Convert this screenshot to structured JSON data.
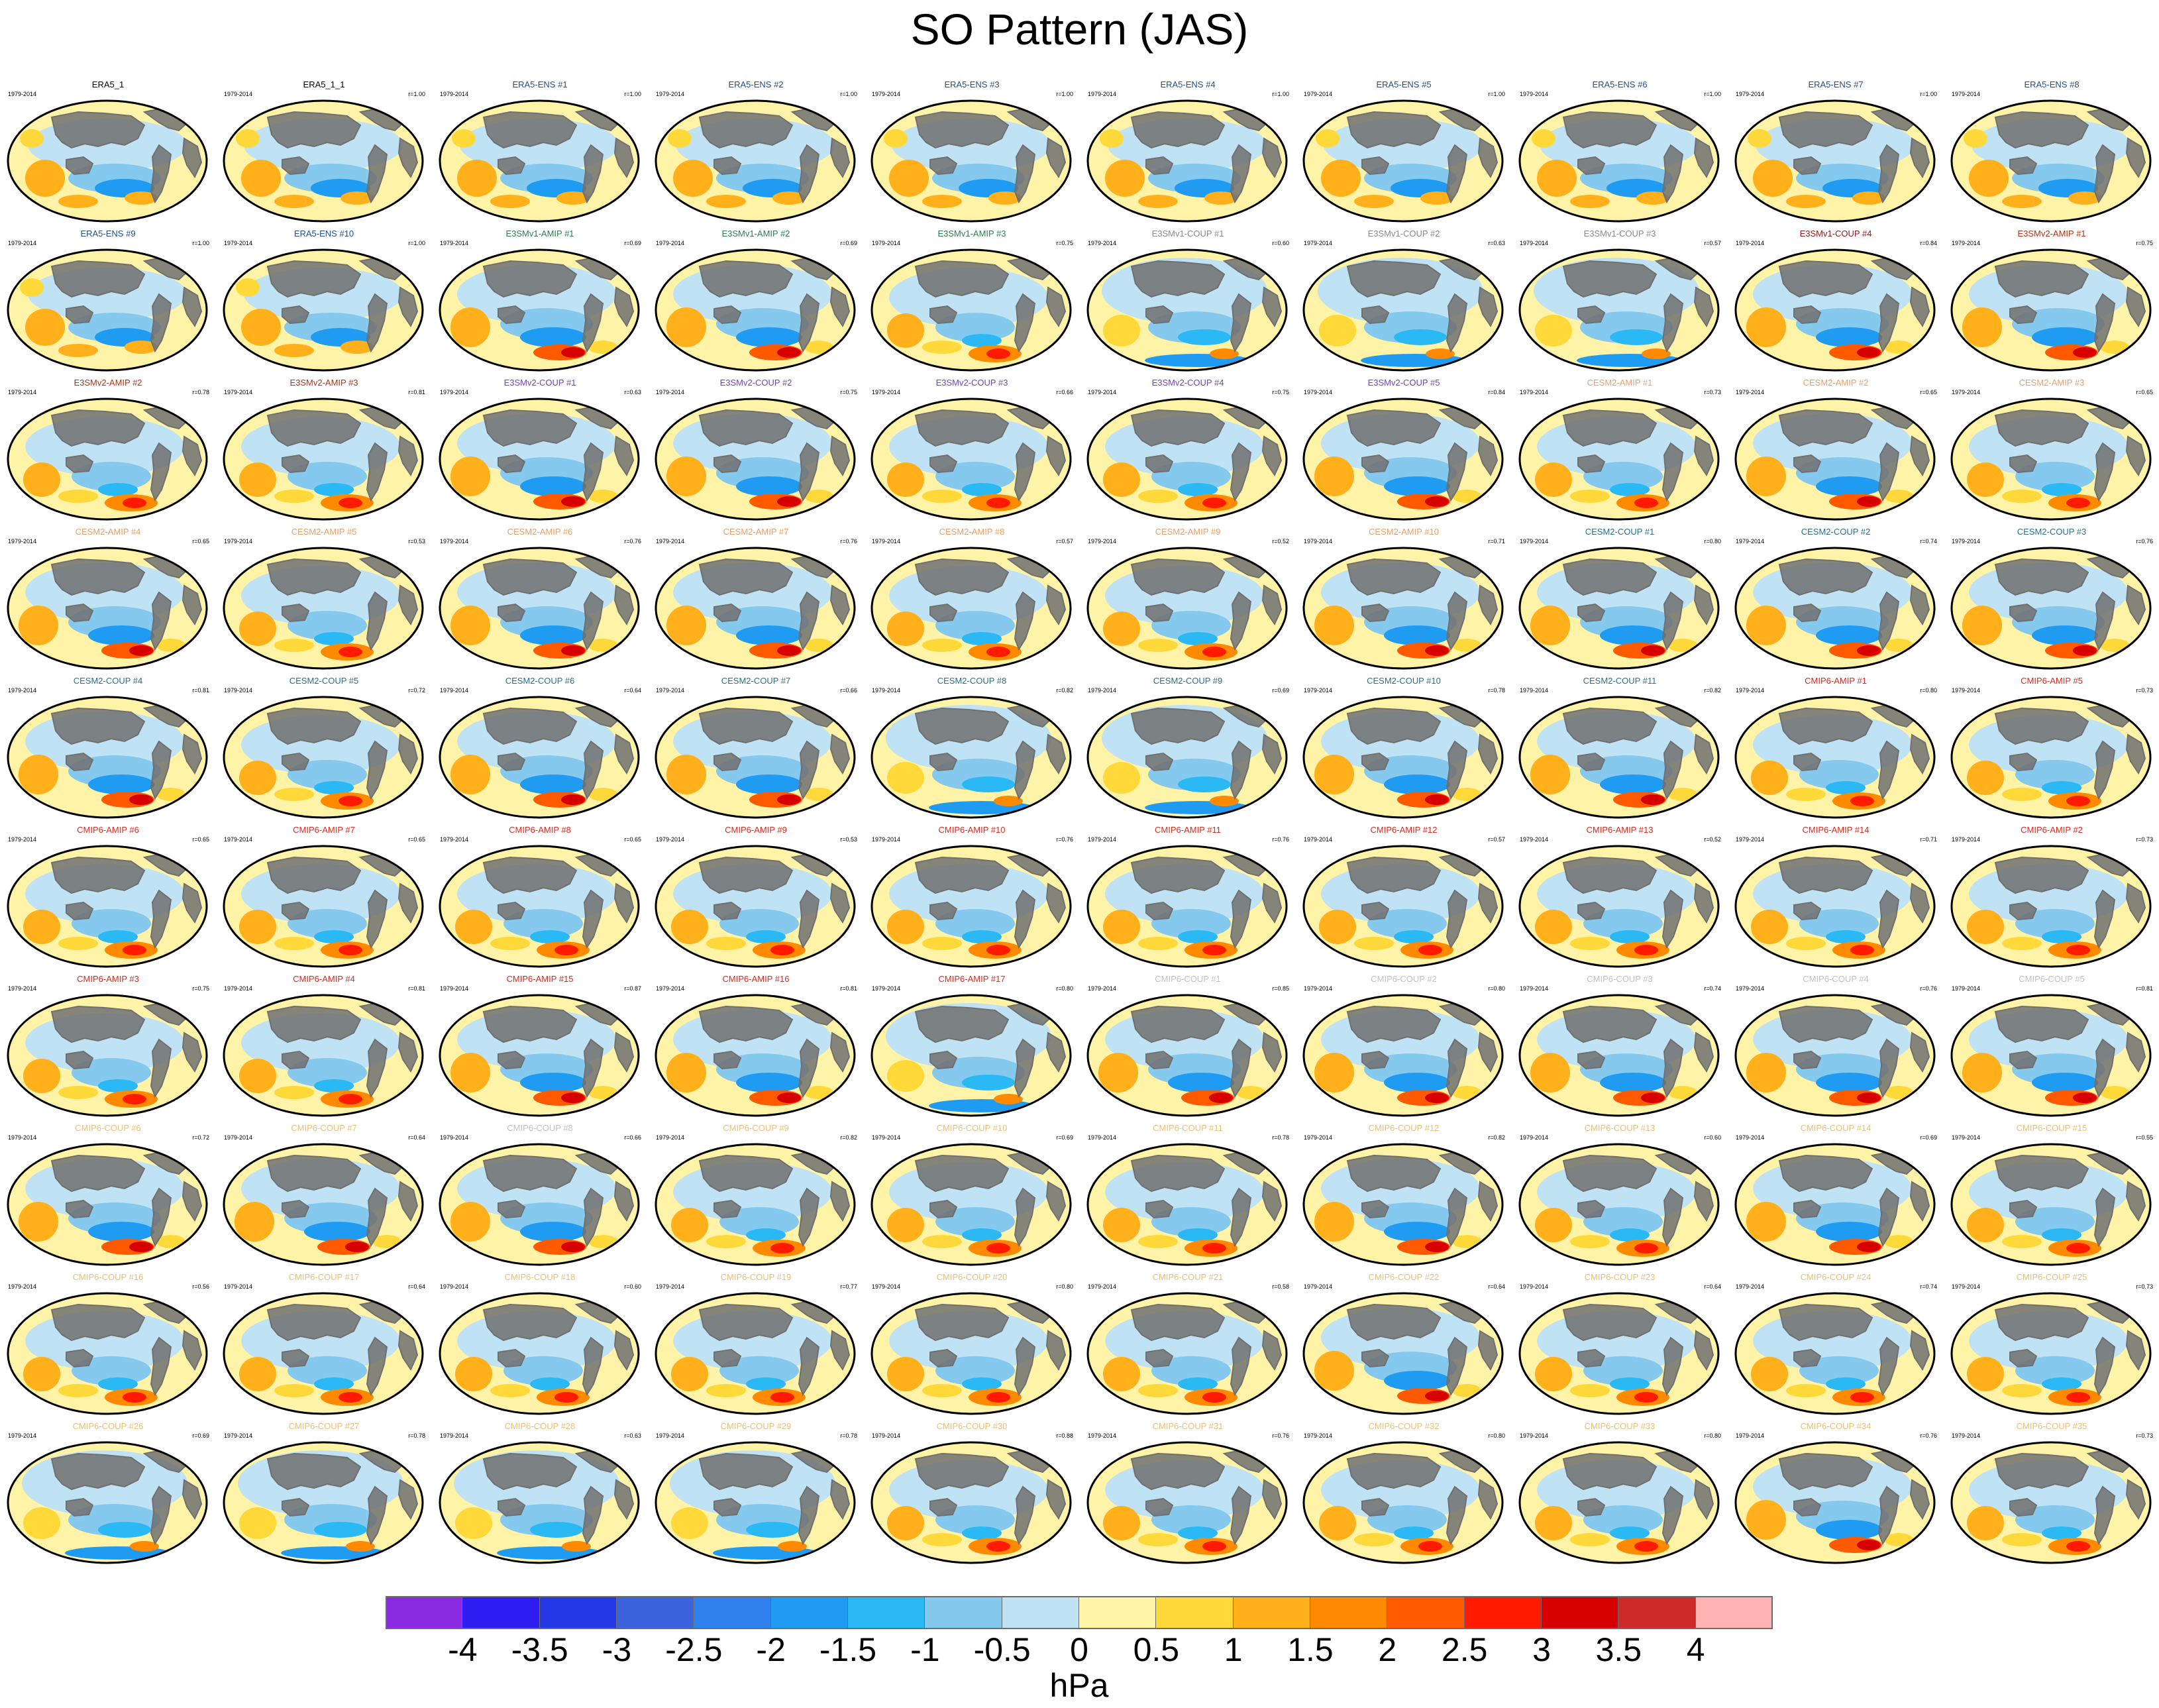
{
  "title": "SO Pattern (JAS)",
  "colorbar": {
    "unit": "hPa",
    "labels": [
      "-4",
      "-3.5",
      "-3",
      "-2.5",
      "-2",
      "-1.5",
      "-1",
      "-0.5",
      "0",
      "0.5",
      "1",
      "1.5",
      "2",
      "2.5",
      "3",
      "3.5",
      "4"
    ],
    "colors": [
      "#8a2be2",
      "#2d1df0",
      "#2438e6",
      "#3a63dd",
      "#2f80ed",
      "#1f9cf2",
      "#2ab9f5",
      "#86c9ee",
      "#bfe2f4",
      "#fff3a8",
      "#ffd93a",
      "#ffb01a",
      "#ff8a00",
      "#ff5a00",
      "#ff1a00",
      "#d60000",
      "#cf2a2a",
      "#ffb3b3"
    ]
  },
  "map_style": {
    "ocean_positive": "#fff3a8",
    "land_fill": "#707070",
    "coast_color": "#707070"
  },
  "period_label": "1979-2014",
  "panels": [
    {
      "title": "ERA5_1",
      "r": "",
      "color": "#000000",
      "pattern": 0
    },
    {
      "title": "ERA5_1_1",
      "r": "r=1.00",
      "color": "#000000",
      "pattern": 0
    },
    {
      "title": "ERA5-ENS   #1",
      "r": "r=1.00",
      "color": "#1f4f8f",
      "pattern": 0
    },
    {
      "title": "ERA5-ENS   #2",
      "r": "r=1.00",
      "color": "#1f4f8f",
      "pattern": 0
    },
    {
      "title": "ERA5-ENS   #3",
      "r": "r=1.00",
      "color": "#1f4f8f",
      "pattern": 0
    },
    {
      "title": "ERA5-ENS   #4",
      "r": "r=1.00",
      "color": "#1f4f8f",
      "pattern": 0
    },
    {
      "title": "ERA5-ENS   #5",
      "r": "r=1.00",
      "color": "#1f4f8f",
      "pattern": 0
    },
    {
      "title": "ERA5-ENS   #6",
      "r": "r=1.00",
      "color": "#1f4f8f",
      "pattern": 0
    },
    {
      "title": "ERA5-ENS   #7",
      "r": "r=1.00",
      "color": "#1f4f8f",
      "pattern": 0
    },
    {
      "title": "ERA5-ENS   #8",
      "r": "",
      "color": "#1f4f8f",
      "pattern": 0
    },
    {
      "title": "ERA5-ENS   #9",
      "r": "r=1.00",
      "color": "#1f4f8f",
      "pattern": 0
    },
    {
      "title": "ERA5-ENS   #10",
      "r": "r=1.00",
      "color": "#1f4f8f",
      "pattern": 0
    },
    {
      "title": "E3SMv1-AMIP #1",
      "r": "r=0.69",
      "color": "#2e7d4f",
      "pattern": 1
    },
    {
      "title": "E3SMv1-AMIP #2",
      "r": "r=0.69",
      "color": "#2e7d4f",
      "pattern": 1
    },
    {
      "title": "E3SMv1-AMIP #3",
      "r": "r=0.75",
      "color": "#2e7d4f",
      "pattern": 2
    },
    {
      "title": "E3SMv1-COUP #1",
      "r": "r=0.60",
      "color": "#8a8a8a",
      "pattern": 3
    },
    {
      "title": "E3SMv1-COUP #2",
      "r": "r=0.63",
      "color": "#8a8a8a",
      "pattern": 3
    },
    {
      "title": "E3SMv1-COUP #3",
      "r": "r=0.57",
      "color": "#8a8a8a",
      "pattern": 3
    },
    {
      "title": "E3SMv1-COUP #4",
      "r": "r=0.84",
      "color": "#8b1a1a",
      "pattern": 1
    },
    {
      "title": "E3SMv2-AMIP #1",
      "r": "r=0.75",
      "color": "#b5320f",
      "pattern": 1
    },
    {
      "title": "E3SMv2-AMIP #2",
      "r": "r=0.78",
      "color": "#b5320f",
      "pattern": 2
    },
    {
      "title": "E3SMv2-AMIP #3",
      "r": "r=0.81",
      "color": "#b5320f",
      "pattern": 2
    },
    {
      "title": "E3SMv2-COUP #1",
      "r": "r=0.63",
      "color": "#7a3fb5",
      "pattern": 1
    },
    {
      "title": "E3SMv2-COUP #2",
      "r": "r=0.75",
      "color": "#7a3fb5",
      "pattern": 1
    },
    {
      "title": "E3SMv2-COUP #3",
      "r": "r=0.66",
      "color": "#7a3fb5",
      "pattern": 2
    },
    {
      "title": "E3SMv2-COUP #4",
      "r": "r=0.75",
      "color": "#7a3fb5",
      "pattern": 2
    },
    {
      "title": "E3SMv2-COUP #5",
      "r": "r=0.84",
      "color": "#7a3fb5",
      "pattern": 1
    },
    {
      "title": "CESM2-AMIP #1",
      "r": "r=0.73",
      "color": "#e8a06a",
      "pattern": 2
    },
    {
      "title": "CESM2-AMIP #2",
      "r": "r=0.65",
      "color": "#e8a06a",
      "pattern": 1
    },
    {
      "title": "CESM2-AMIP #3",
      "r": "r=0.65",
      "color": "#e8a06a",
      "pattern": 2
    },
    {
      "title": "CESM2-AMIP #4",
      "r": "r=0.65",
      "color": "#e8a06a",
      "pattern": 1
    },
    {
      "title": "CESM2-AMIP #5",
      "r": "r=0.53",
      "color": "#e8a06a",
      "pattern": 2
    },
    {
      "title": "CESM2-AMIP #6",
      "r": "r=0.76",
      "color": "#e8a06a",
      "pattern": 1
    },
    {
      "title": "CESM2-AMIP #7",
      "r": "r=0.76",
      "color": "#e8a06a",
      "pattern": 1
    },
    {
      "title": "CESM2-AMIP #8",
      "r": "r=0.57",
      "color": "#e8a06a",
      "pattern": 2
    },
    {
      "title": "CESM2-AMIP #9",
      "r": "r=0.52",
      "color": "#e8a06a",
      "pattern": 2
    },
    {
      "title": "CESM2-AMIP #10",
      "r": "r=0.71",
      "color": "#e8a06a",
      "pattern": 1
    },
    {
      "title": "CESM2-COUP #1",
      "r": "r=0.80",
      "color": "#2b6f8f",
      "pattern": 1
    },
    {
      "title": "CESM2-COUP #2",
      "r": "r=0.74",
      "color": "#2b6f8f",
      "pattern": 1
    },
    {
      "title": "CESM2-COUP #3",
      "r": "r=0.76",
      "color": "#2b6f8f",
      "pattern": 1
    },
    {
      "title": "CESM2-COUP #4",
      "r": "r=0.81",
      "color": "#2b6f8f",
      "pattern": 1
    },
    {
      "title": "CESM2-COUP #5",
      "r": "r=0.72",
      "color": "#2b6f8f",
      "pattern": 2
    },
    {
      "title": "CESM2-COUP #6",
      "r": "r=0.64",
      "color": "#2b6f8f",
      "pattern": 1
    },
    {
      "title": "CESM2-COUP #7",
      "r": "r=0.66",
      "color": "#2b6f8f",
      "pattern": 1
    },
    {
      "title": "CESM2-COUP #8",
      "r": "r=0.82",
      "color": "#2b6f8f",
      "pattern": 3
    },
    {
      "title": "CESM2-COUP #9",
      "r": "r=0.69",
      "color": "#2b6f8f",
      "pattern": 3
    },
    {
      "title": "CESM2-COUP #10",
      "r": "r=0.78",
      "color": "#2b6f8f",
      "pattern": 1
    },
    {
      "title": "CESM2-COUP #11",
      "r": "r=0.82",
      "color": "#2b6f8f",
      "pattern": 1
    },
    {
      "title": "CMIP6-AMIP #1",
      "r": "r=0.80",
      "color": "#d62b1e",
      "pattern": 2
    },
    {
      "title": "CMIP6-AMIP #5",
      "r": "r=0.73",
      "color": "#d62b1e",
      "pattern": 2
    },
    {
      "title": "CMIP6-AMIP #6",
      "r": "r=0.65",
      "color": "#d62b1e",
      "pattern": 2
    },
    {
      "title": "CMIP6-AMIP #7",
      "r": "r=0.65",
      "color": "#d62b1e",
      "pattern": 2
    },
    {
      "title": "CMIP6-AMIP #8",
      "r": "r=0.65",
      "color": "#d62b1e",
      "pattern": 2
    },
    {
      "title": "CMIP6-AMIP #9",
      "r": "r=0.53",
      "color": "#d62b1e",
      "pattern": 2
    },
    {
      "title": "CMIP6-AMIP #10",
      "r": "r=0.76",
      "color": "#d62b1e",
      "pattern": 2
    },
    {
      "title": "CMIP6-AMIP #11",
      "r": "r=0.76",
      "color": "#d62b1e",
      "pattern": 2
    },
    {
      "title": "CMIP6-AMIP #12",
      "r": "r=0.57",
      "color": "#d62b1e",
      "pattern": 2
    },
    {
      "title": "CMIP6-AMIP #13",
      "r": "r=0.52",
      "color": "#d62b1e",
      "pattern": 2
    },
    {
      "title": "CMIP6-AMIP #14",
      "r": "r=0.71",
      "color": "#d62b1e",
      "pattern": 2
    },
    {
      "title": "CMIP6-AMIP #2",
      "r": "r=0.73",
      "color": "#d62b1e",
      "pattern": 2
    },
    {
      "title": "CMIP6-AMIP #3",
      "r": "r=0.75",
      "color": "#d62b1e",
      "pattern": 2
    },
    {
      "title": "CMIP6-AMIP #4",
      "r": "r=0.81",
      "color": "#d62b1e",
      "pattern": 2
    },
    {
      "title": "CMIP6-AMIP #15",
      "r": "r=0.87",
      "color": "#d62b1e",
      "pattern": 1
    },
    {
      "title": "CMIP6-AMIP #16",
      "r": "r=0.81",
      "color": "#d62b1e",
      "pattern": 1
    },
    {
      "title": "CMIP6-AMIP #17",
      "r": "r=0.80",
      "color": "#d62b1e",
      "pattern": 3
    },
    {
      "title": "CMIP6-COUP #1",
      "r": "r=0.85",
      "color": "#c2c2c2",
      "pattern": 1
    },
    {
      "title": "CMIP6-COUP #2",
      "r": "r=0.80",
      "color": "#c2c2c2",
      "pattern": 1
    },
    {
      "title": "CMIP6-COUP #3",
      "r": "r=0.74",
      "color": "#c2c2c2",
      "pattern": 1
    },
    {
      "title": "CMIP6-COUP #4",
      "r": "r=0.76",
      "color": "#c2c2c2",
      "pattern": 1
    },
    {
      "title": "CMIP6-COUP #5",
      "r": "r=0.81",
      "color": "#c2c2c2",
      "pattern": 1
    },
    {
      "title": "CMIP6-COUP #6",
      "r": "r=0.72",
      "color": "#e8c07a",
      "pattern": 1
    },
    {
      "title": "CMIP6-COUP #7",
      "r": "r=0.64",
      "color": "#e8c07a",
      "pattern": 1
    },
    {
      "title": "CMIP6-COUP #8",
      "r": "r=0.66",
      "color": "#c2c2c2",
      "pattern": 1
    },
    {
      "title": "CMIP6-COUP #9",
      "r": "r=0.82",
      "color": "#e8c07a",
      "pattern": 2
    },
    {
      "title": "CMIP6-COUP #10",
      "r": "r=0.69",
      "color": "#e8c07a",
      "pattern": 2
    },
    {
      "title": "CMIP6-COUP #11",
      "r": "r=0.78",
      "color": "#e8c07a",
      "pattern": 2
    },
    {
      "title": "CMIP6-COUP #12",
      "r": "r=0.82",
      "color": "#e8c07a",
      "pattern": 1
    },
    {
      "title": "CMIP6-COUP #13",
      "r": "r=0.60",
      "color": "#e8c07a",
      "pattern": 2
    },
    {
      "title": "CMIP6-COUP #14",
      "r": "r=0.69",
      "color": "#e8c07a",
      "pattern": 1
    },
    {
      "title": "CMIP6-COUP #15",
      "r": "r=0.55",
      "color": "#e8c07a",
      "pattern": 2
    },
    {
      "title": "CMIP6-COUP #16",
      "r": "r=0.56",
      "color": "#e8c07a",
      "pattern": 2
    },
    {
      "title": "CMIP6-COUP #17",
      "r": "r=0.64",
      "color": "#e8c07a",
      "pattern": 2
    },
    {
      "title": "CMIP6-COUP #18",
      "r": "r=0.60",
      "color": "#e8c07a",
      "pattern": 2
    },
    {
      "title": "CMIP6-COUP #19",
      "r": "r=0.77",
      "color": "#e8c07a",
      "pattern": 2
    },
    {
      "title": "CMIP6-COUP #20",
      "r": "r=0.80",
      "color": "#e8c07a",
      "pattern": 2
    },
    {
      "title": "CMIP6-COUP #21",
      "r": "r=0.58",
      "color": "#e8c07a",
      "pattern": 2
    },
    {
      "title": "CMIP6-COUP #22",
      "r": "r=0.64",
      "color": "#e8c07a",
      "pattern": 1
    },
    {
      "title": "CMIP6-COUP #23",
      "r": "r=0.64",
      "color": "#e8c07a",
      "pattern": 2
    },
    {
      "title": "CMIP6-COUP #24",
      "r": "r=0.74",
      "color": "#e8c07a",
      "pattern": 2
    },
    {
      "title": "CMIP6-COUP #25",
      "r": "r=0.73",
      "color": "#e8c07a",
      "pattern": 2
    },
    {
      "title": "CMIP6-COUP #26",
      "r": "r=0.69",
      "color": "#e8c07a",
      "pattern": 3
    },
    {
      "title": "CMIP6-COUP #27",
      "r": "r=0.78",
      "color": "#e8c07a",
      "pattern": 3
    },
    {
      "title": "CMIP6-COUP #28",
      "r": "r=0.63",
      "color": "#e8c07a",
      "pattern": 3
    },
    {
      "title": "CMIP6-COUP #29",
      "r": "r=0.78",
      "color": "#e8c07a",
      "pattern": 3
    },
    {
      "title": "CMIP6-COUP #30",
      "r": "r=0.88",
      "color": "#e8c07a",
      "pattern": 2
    },
    {
      "title": "CMIP6-COUP #31",
      "r": "r=0.76",
      "color": "#e8c07a",
      "pattern": 2
    },
    {
      "title": "CMIP6-COUP #32",
      "r": "r=0.80",
      "color": "#e8c07a",
      "pattern": 2
    },
    {
      "title": "CMIP6-COUP #33",
      "r": "r=0.80",
      "color": "#e8c07a",
      "pattern": 2
    },
    {
      "title": "CMIP6-COUP #34",
      "r": "r=0.76",
      "color": "#e8c07a",
      "pattern": 1
    },
    {
      "title": "CMIP6-COUP #35",
      "r": "r=0.73",
      "color": "#e8c07a",
      "pattern": 2
    }
  ]
}
